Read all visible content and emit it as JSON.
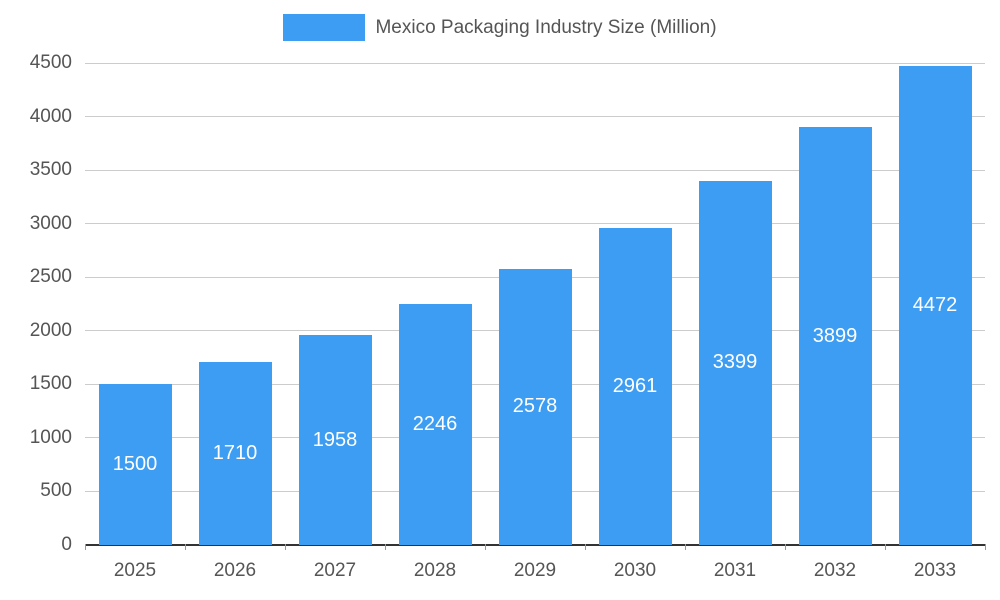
{
  "legend": {
    "label": "Mexico Packaging Industry Size (Million)"
  },
  "chart_data": {
    "type": "bar",
    "title": "Mexico Packaging Industry Size (Million)",
    "categories": [
      "2025",
      "2026",
      "2027",
      "2028",
      "2029",
      "2030",
      "2031",
      "2032",
      "2033"
    ],
    "values": [
      1500,
      1710,
      1958,
      2246,
      2578,
      2961,
      3399,
      3899,
      4472
    ],
    "xlabel": "",
    "ylabel": "",
    "ylim": [
      0,
      4500
    ],
    "ytick_step": 500,
    "grid": "horizontal",
    "legend_position": "top-center",
    "value_labels": "inside-center",
    "colors": {
      "bar": "#3d9df3",
      "value_label": "#ffffff",
      "axis_text": "#555555",
      "gridline": "#cccccc",
      "axis_line": "#333333"
    }
  }
}
